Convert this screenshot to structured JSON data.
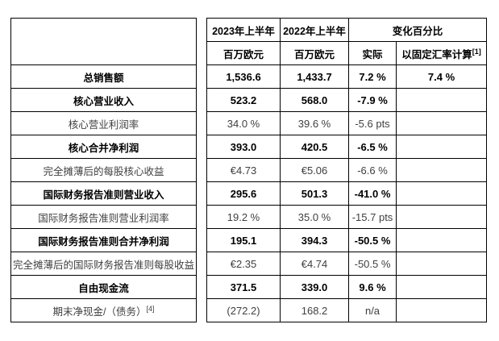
{
  "table": {
    "header": {
      "col_2023": "2023年上半年",
      "col_2022": "2022年上半年",
      "col_change": "变化百分比",
      "unit_2023": "百万欧元",
      "unit_2022": "百万欧元",
      "col_actual": "实际",
      "col_cer": "以固定汇率计算",
      "col_cer_sup": "[1]"
    },
    "rows": [
      {
        "label": "总销售额",
        "label_sup": "",
        "bold": true,
        "values": [
          "1,536.6",
          "1,433.7",
          "7.2 %",
          "7.4 %"
        ]
      },
      {
        "label": "核心营业收入",
        "label_sup": "",
        "bold": true,
        "values": [
          "523.2",
          "568.0",
          "-7.9 %",
          ""
        ]
      },
      {
        "label": "核心营业利润率",
        "label_sup": "",
        "bold": false,
        "values": [
          "34.0 %",
          "39.6 %",
          "-5.6 pts",
          ""
        ]
      },
      {
        "label": "核心合并净利润",
        "label_sup": "",
        "bold": true,
        "values": [
          "393.0",
          "420.5",
          "-6.5 %",
          ""
        ]
      },
      {
        "label": "完全摊薄后的每股核心收益",
        "label_sup": "",
        "bold": false,
        "values": [
          "€4.73",
          "€5.06",
          "-6.6 %",
          ""
        ]
      },
      {
        "label": "国际财务报告准则营业收入",
        "label_sup": "",
        "bold": true,
        "values": [
          "295.6",
          "501.3",
          "-41.0 %",
          ""
        ]
      },
      {
        "label": "国际财务报告准则营业利润率",
        "label_sup": "",
        "bold": false,
        "values": [
          "19.2 %",
          "35.0 %",
          "-15.7 pts",
          ""
        ]
      },
      {
        "label": "国际财务报告准则合并净利润",
        "label_sup": "",
        "bold": true,
        "values": [
          "195.1",
          "394.3",
          "-50.5 %",
          ""
        ]
      },
      {
        "label": "完全摊薄后的国际财务报告准则每股收益",
        "label_sup": "",
        "bold": false,
        "values": [
          "€2.35",
          "€4.74",
          "-50.5 %",
          ""
        ]
      },
      {
        "label": "自由现金流",
        "label_sup": "",
        "bold": true,
        "values": [
          "371.5",
          "339.0",
          "9.6 %",
          ""
        ]
      },
      {
        "label": "期末净现金/（债务）",
        "label_sup": "[4]",
        "bold": false,
        "values": [
          "(272.2)",
          "168.2",
          "n/a",
          ""
        ]
      }
    ]
  }
}
